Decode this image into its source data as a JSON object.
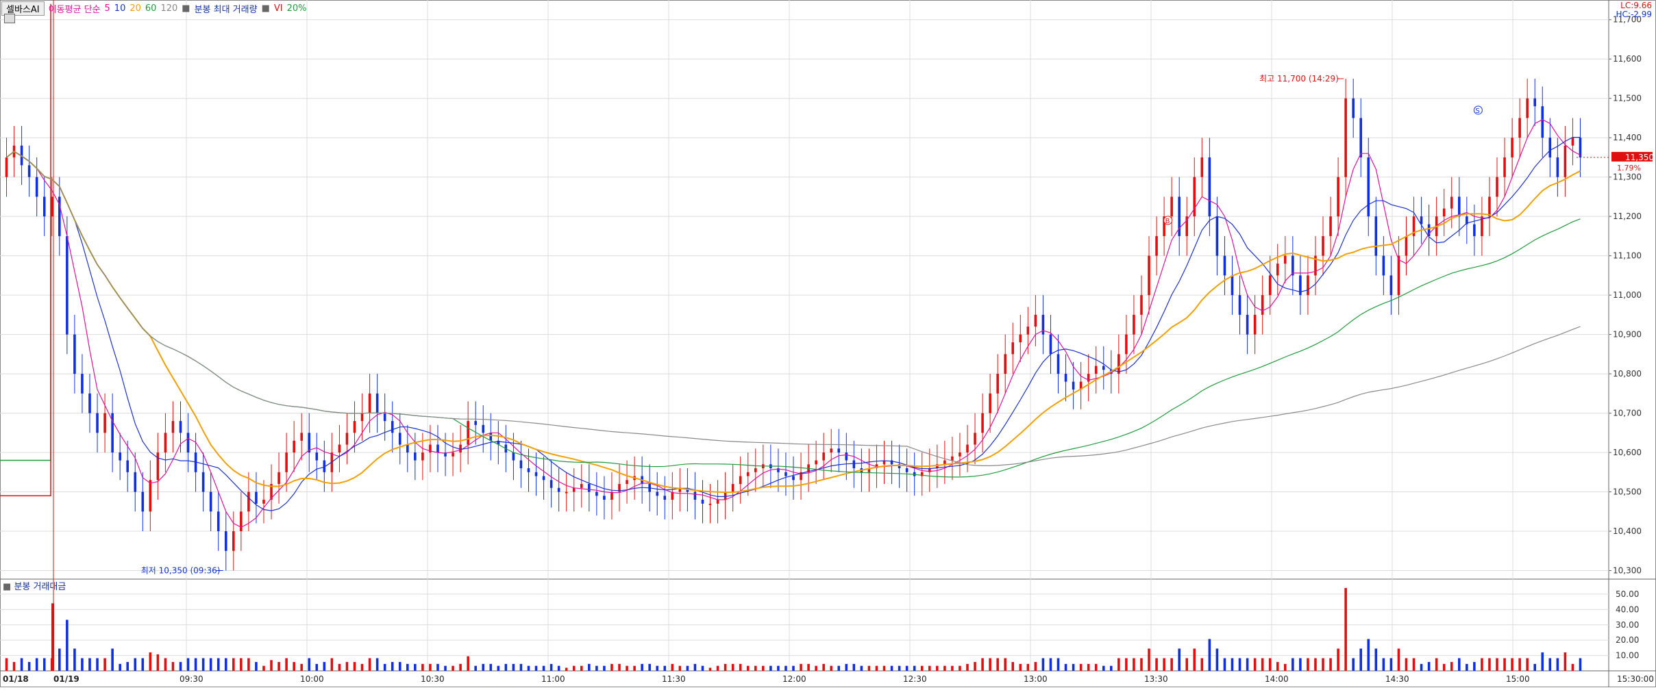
{
  "header": {
    "tab_label": "셀바스AI",
    "ma_label": "이동평균 단순",
    "ma_periods": [
      "5",
      "10",
      "20",
      "60",
      "120"
    ],
    "ma_colors": [
      "#e0109a",
      "#1a2fd0",
      "#f0a000",
      "#1f9a3c",
      "#888888"
    ],
    "extra_label": "분봉 최대 거래량",
    "vi_label": "VI",
    "vi_value": "20%",
    "lc_label": "LC:9.66",
    "hc_label": "HC:-2.99"
  },
  "volume_panel": {
    "title": "분봉 거래대금"
  },
  "colors": {
    "up": "#e01010",
    "down": "#1030e0",
    "grid": "#dcdcdc",
    "last_price_bg": "#e01010"
  },
  "chart_data": {
    "type": "candlestick",
    "price_axis": {
      "ylim": [
        10280,
        11750
      ],
      "ticks": [
        "11,700",
        "11,600",
        "11,500",
        "11,400",
        "11,300",
        "11,200",
        "11,100",
        "11,000",
        "10,900",
        "10,800",
        "10,700",
        "10,600",
        "10,500",
        "10,400",
        "10,300"
      ]
    },
    "volume_axis": {
      "ylim": [
        0,
        58
      ],
      "ticks": [
        "50.00",
        "40.00",
        "30.00",
        "20.00",
        "10.00"
      ]
    },
    "time_labels": [
      "01/18",
      "01/19",
      "09:30",
      "10:00",
      "10:30",
      "11:00",
      "11:30",
      "12:00",
      "12:30",
      "13:00",
      "13:30",
      "14:00",
      "14:30",
      "15:00",
      "15:30:00"
    ],
    "annotations": {
      "high": "최고 11,700 (14:29)",
      "low": "최저 10,350 (09:36)",
      "last_price": "11,350",
      "last_change": "1.79%",
      "marker_s": "S",
      "marker_b": "B"
    },
    "prev_day": {
      "ma_green": 10580,
      "ma_red": 10490
    },
    "close_series": [
      11350,
      11380,
      11330,
      11300,
      11250,
      11200,
      11250,
      11150,
      10900,
      10800,
      10750,
      10700,
      10650,
      10700,
      10600,
      10580,
      10550,
      10500,
      10450,
      10530,
      10600,
      10650,
      10680,
      10650,
      10600,
      10550,
      10500,
      10450,
      10400,
      10350,
      10400,
      10450,
      10500,
      10470,
      10480,
      10520,
      10550,
      10600,
      10630,
      10650,
      10600,
      10580,
      10550,
      10600,
      10620,
      10650,
      10680,
      10700,
      10750,
      10700,
      10680,
      10650,
      10620,
      10600,
      10580,
      10600,
      10620,
      10600,
      10590,
      10600,
      10620,
      10680,
      10670,
      10650,
      10630,
      10620,
      10600,
      10580,
      10560,
      10550,
      10540,
      10530,
      10510,
      10500,
      10500,
      10510,
      10520,
      10500,
      10490,
      10480,
      10500,
      10520,
      10530,
      10540,
      10520,
      10500,
      10490,
      10480,
      10500,
      10510,
      10500,
      10480,
      10470,
      10470,
      10480,
      10500,
      10520,
      10540,
      10550,
      10560,
      10570,
      10560,
      10550,
      10540,
      10530,
      10550,
      10570,
      10580,
      10600,
      10610,
      10600,
      10580,
      10560,
      10550,
      10560,
      10570,
      10580,
      10570,
      10560,
      10550,
      10540,
      10550,
      10560,
      10570,
      10580,
      10590,
      10600,
      10620,
      10650,
      10700,
      10750,
      10800,
      10850,
      10880,
      10900,
      10920,
      10950,
      10900,
      10850,
      10800,
      10780,
      10760,
      10780,
      10800,
      10820,
      10810,
      10800,
      10850,
      10900,
      10950,
      11000,
      11100,
      11150,
      11200,
      11250,
      11150,
      11200,
      11300,
      11350,
      11200,
      11100,
      11050,
      11000,
      10950,
      10900,
      10950,
      11000,
      11050,
      11080,
      11100,
      11050,
      11000,
      11050,
      11100,
      11150,
      11200,
      11300,
      11500,
      11450,
      11350,
      11200,
      11100,
      11050,
      11000,
      11100,
      11150,
      11200,
      11180,
      11150,
      11200,
      11220,
      11250,
      11200,
      11180,
      11150,
      11200,
      11250,
      11300,
      11350,
      11400,
      11450,
      11500,
      11480,
      11400,
      11350,
      11300,
      11380,
      11400,
      11350
    ]
  }
}
